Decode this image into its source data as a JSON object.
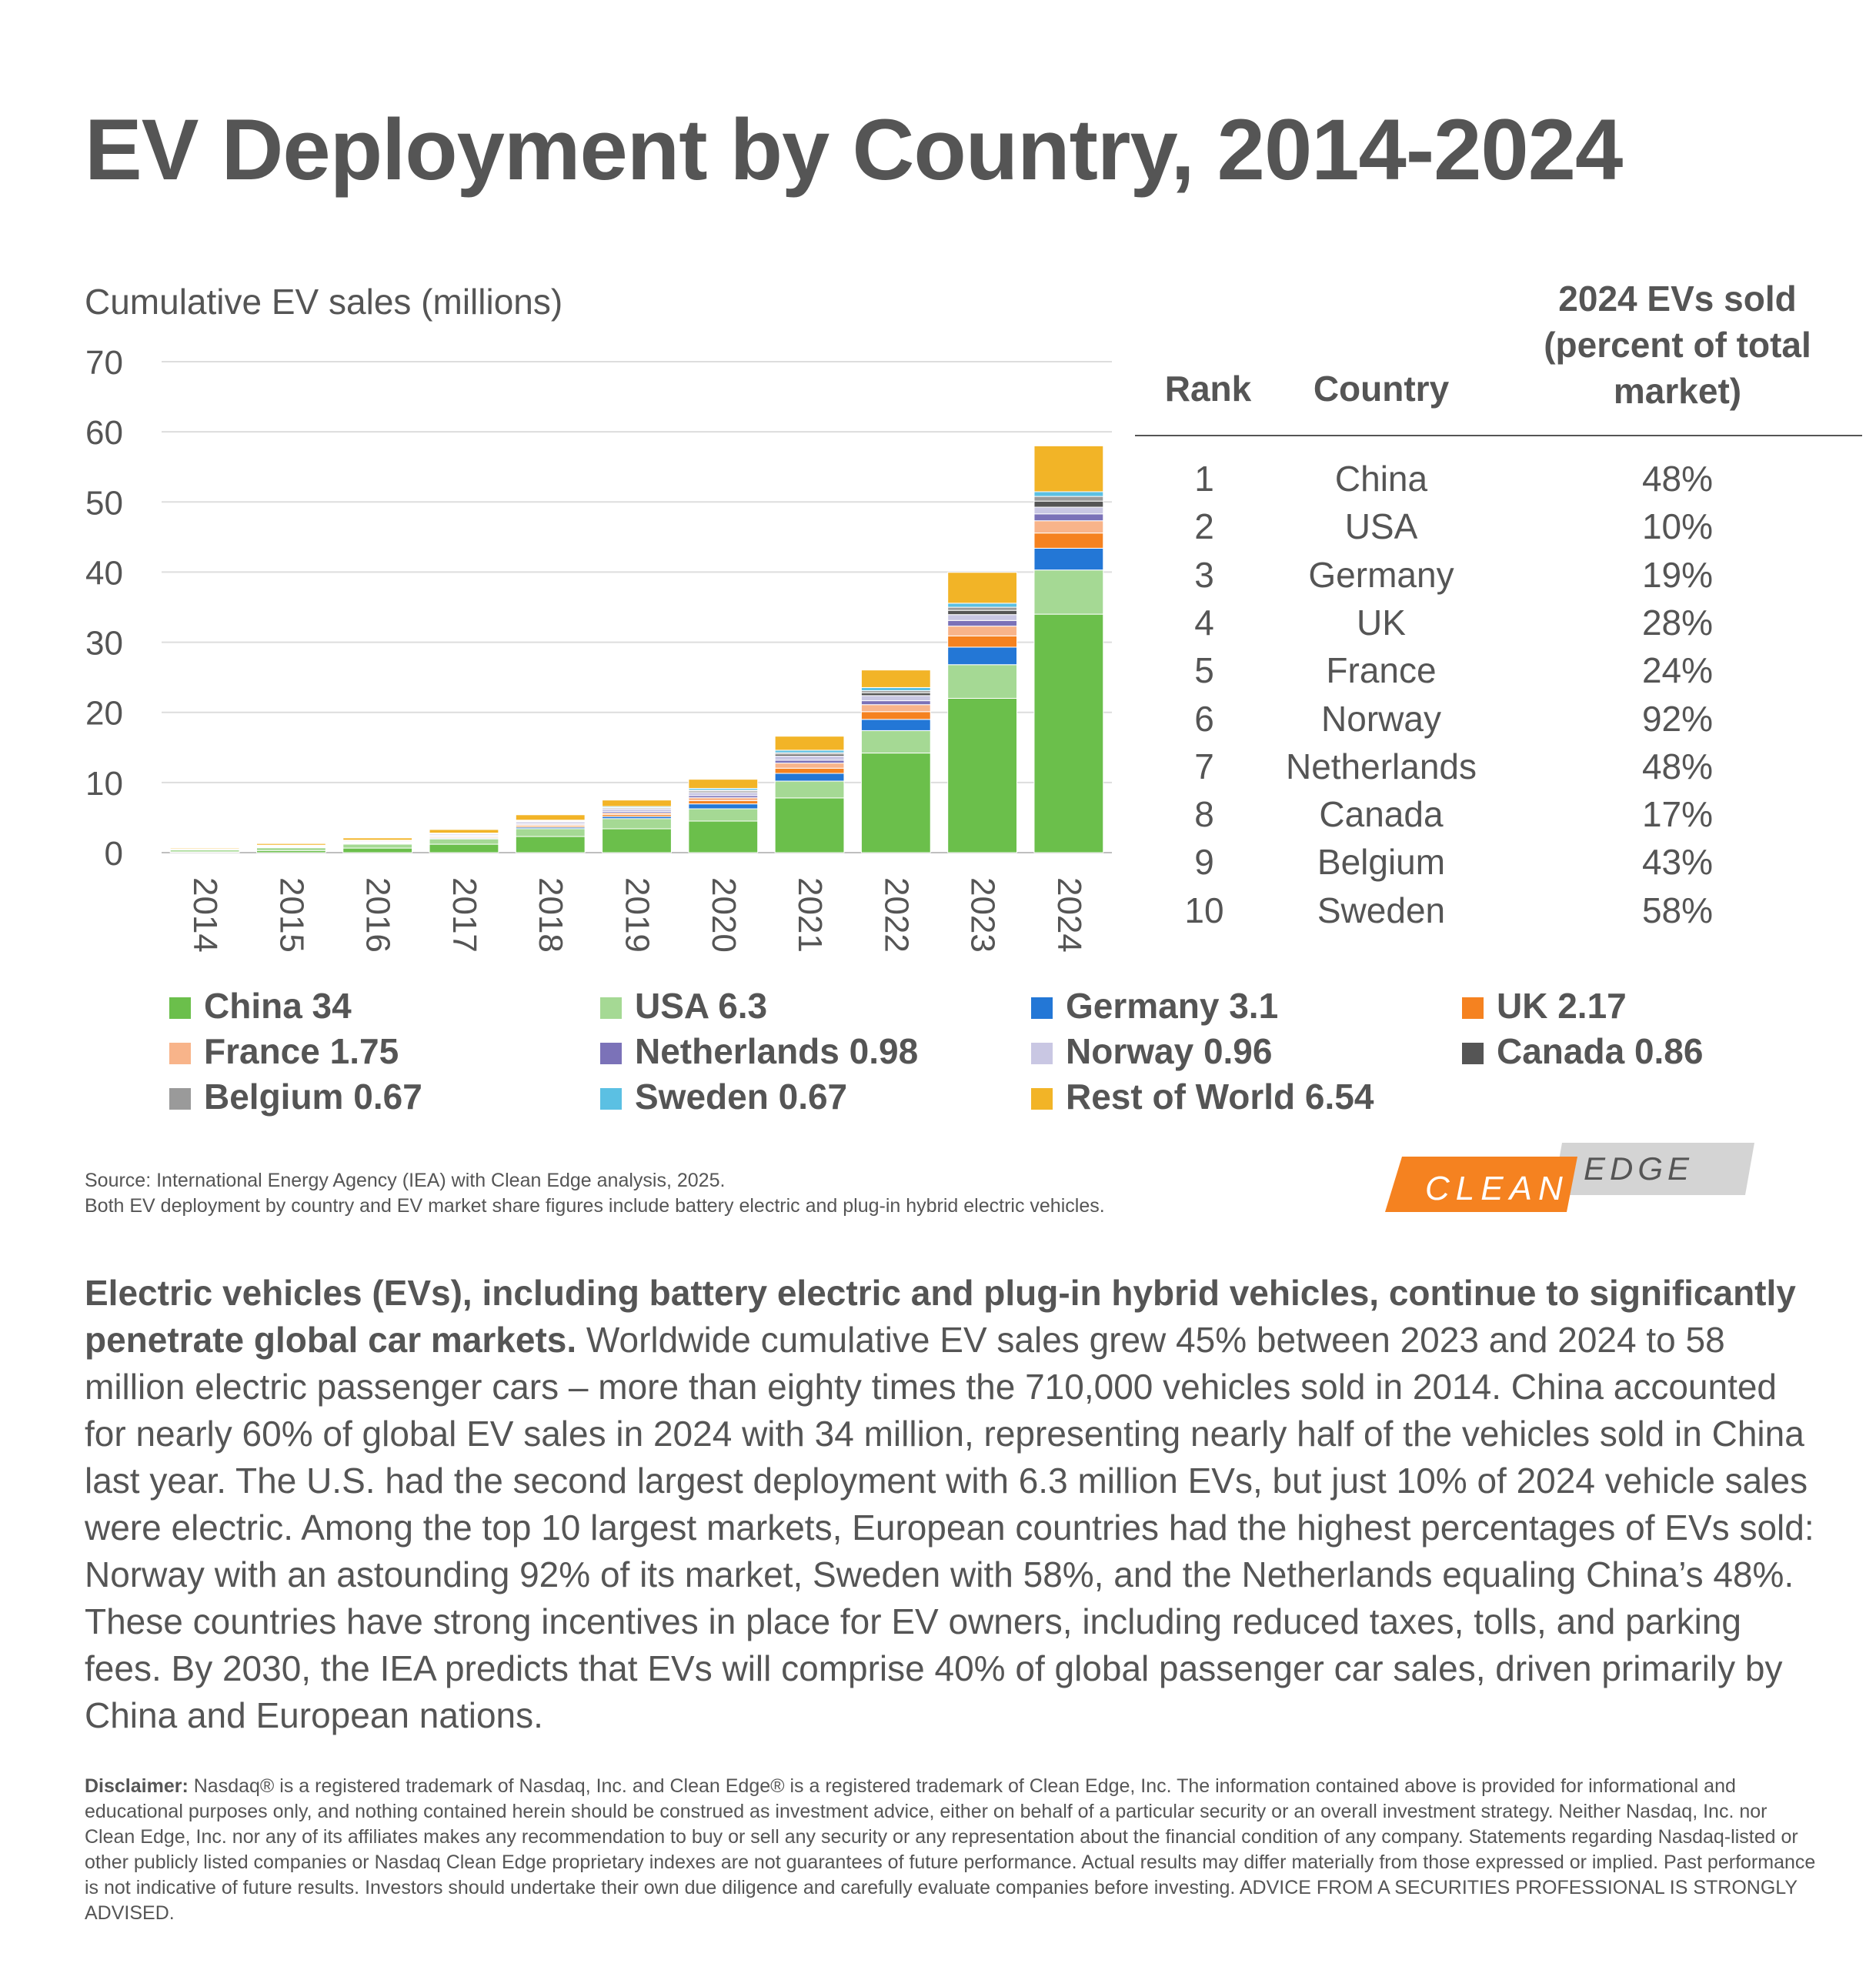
{
  "title": "EV Deployment by Country, 2014-2024",
  "chart_data": {
    "type": "bar",
    "stacked": true,
    "title": "EV Deployment by Country, 2014-2024",
    "ylabel": "Cumulative EV sales (millions)",
    "xlabel": "",
    "ylim": [
      0,
      70
    ],
    "yticks": [
      0,
      10,
      20,
      30,
      40,
      50,
      60,
      70
    ],
    "grid": true,
    "legend_position": "bottom",
    "categories": [
      "2014",
      "2015",
      "2016",
      "2017",
      "2018",
      "2019",
      "2020",
      "2021",
      "2022",
      "2023",
      "2024"
    ],
    "series": [
      {
        "name": "China",
        "legend_label": "China 34",
        "color": "#6BBF4B",
        "values": [
          0.1,
          0.3,
          0.65,
          1.2,
          2.3,
          3.4,
          4.5,
          7.8,
          14.2,
          22.0,
          34.0
        ]
      },
      {
        "name": "USA",
        "legend_label": "USA 6.3",
        "color": "#A5D994",
        "values": [
          0.29,
          0.4,
          0.56,
          0.76,
          1.12,
          1.45,
          1.75,
          2.4,
          3.2,
          4.8,
          6.3
        ]
      },
      {
        "name": "Germany",
        "legend_label": "Germany 3.1",
        "color": "#2377D6",
        "values": [
          0.02,
          0.05,
          0.07,
          0.12,
          0.2,
          0.3,
          0.7,
          1.1,
          1.6,
          2.5,
          3.1
        ]
      },
      {
        "name": "UK",
        "legend_label": "UK 2.17",
        "color": "#F58220",
        "values": [
          0.02,
          0.05,
          0.09,
          0.14,
          0.2,
          0.27,
          0.46,
          0.74,
          1.1,
          1.6,
          2.17
        ]
      },
      {
        "name": "France",
        "legend_label": "France 1.75",
        "color": "#F8B48A",
        "values": [
          0.03,
          0.05,
          0.08,
          0.12,
          0.17,
          0.24,
          0.42,
          0.73,
          1.0,
          1.4,
          1.75
        ]
      },
      {
        "name": "Netherlands",
        "legend_label": "Netherlands 0.98",
        "color": "#7B72B8",
        "values": [
          0.04,
          0.09,
          0.11,
          0.12,
          0.15,
          0.22,
          0.3,
          0.4,
          0.56,
          0.8,
          0.98
        ]
      },
      {
        "name": "Norway",
        "legend_label": "Norway 0.96",
        "color": "#C9C7E3",
        "values": [
          0.04,
          0.08,
          0.13,
          0.18,
          0.26,
          0.34,
          0.45,
          0.6,
          0.73,
          0.84,
          0.96
        ]
      },
      {
        "name": "Canada",
        "legend_label": "Canada 0.86",
        "color": "#555555",
        "values": [
          0.01,
          0.02,
          0.03,
          0.05,
          0.09,
          0.14,
          0.19,
          0.28,
          0.4,
          0.6,
          0.86
        ]
      },
      {
        "name": "Belgium",
        "legend_label": "Belgium 0.67",
        "color": "#9A9A9A",
        "values": [
          0.01,
          0.01,
          0.02,
          0.04,
          0.05,
          0.07,
          0.14,
          0.2,
          0.3,
          0.45,
          0.67
        ]
      },
      {
        "name": "Sweden",
        "legend_label": "Sweden 0.67",
        "color": "#5BC0E3",
        "values": [
          0.01,
          0.02,
          0.04,
          0.06,
          0.09,
          0.15,
          0.25,
          0.35,
          0.45,
          0.57,
          0.67
        ]
      },
      {
        "name": "Rest of World",
        "legend_label": "Rest of World 6.54",
        "color": "#F2B427",
        "values": [
          0.14,
          0.23,
          0.32,
          0.51,
          0.77,
          0.92,
          1.3,
          2.0,
          2.5,
          4.4,
          6.54
        ]
      }
    ]
  },
  "table": {
    "headers": {
      "rank": "Rank",
      "country": "Country",
      "share_lines": [
        "2024 EVs sold",
        "(percent of total",
        "market)"
      ]
    },
    "rows": [
      {
        "rank": "1",
        "country": "China",
        "share": "48%"
      },
      {
        "rank": "2",
        "country": "USA",
        "share": "10%"
      },
      {
        "rank": "3",
        "country": "Germany",
        "share": "19%"
      },
      {
        "rank": "4",
        "country": "UK",
        "share": "28%"
      },
      {
        "rank": "5",
        "country": "France",
        "share": "24%"
      },
      {
        "rank": "6",
        "country": "Norway",
        "share": "92%"
      },
      {
        "rank": "7",
        "country": "Netherlands",
        "share": "48%"
      },
      {
        "rank": "8",
        "country": "Canada",
        "share": "17%"
      },
      {
        "rank": "9",
        "country": "Belgium",
        "share": "43%"
      },
      {
        "rank": "10",
        "country": "Sweden",
        "share": "58%"
      }
    ]
  },
  "source": {
    "line1": "Source: International Energy Agency (IEA) with Clean Edge analysis, 2025.",
    "line2": "Both EV deployment by country and EV market share figures include battery electric and plug-in hybrid electric vehicles."
  },
  "logo": {
    "word1": "CLEAN",
    "word2": "EDGE",
    "color1": "#F58220",
    "color2": "#D4D4D4"
  },
  "body": {
    "lead": "Electric vehicles (EVs), including battery electric and plug-in hybrid vehicles, continue to significantly penetrate global car markets.",
    "text": " Worldwide cumulative EV sales grew 45% between 2023 and 2024 to 58 million electric passenger cars – more than eighty times the 710,000 vehicles sold in 2014. China accounted for nearly 60% of global EV sales in 2024 with 34 million, representing nearly half of the vehicles sold in China last year. The U.S. had the second largest deployment with 6.3 million EVs, but just 10% of 2024 vehicle sales were electric. Among the top 10 largest markets, European countries had the highest percentages of EVs sold: Norway with an astounding 92% of its market, Sweden with 58%, and the Netherlands equaling China’s 48%. These countries have strong incentives in place for EV owners, including reduced taxes, tolls, and parking fees. By 2030, the IEA predicts that EVs will comprise 40% of global passenger car sales, driven primarily by China and European nations."
  },
  "disclaimer": {
    "label": "Disclaimer:",
    "text": " Nasdaq® is a registered trademark of Nasdaq, Inc. and Clean Edge® is a registered trademark of Clean Edge, Inc. The information contained above is provided for informational and educational purposes only, and nothing contained herein should be construed as investment advice, either on behalf of a particular security or an overall investment strategy. Neither Nasdaq, Inc. nor Clean Edge, Inc. nor any of its affiliates makes any recommendation to buy or sell any security or any representation about the financial condition of any company. Statements regarding Nasdaq-listed or other publicly listed companies or Nasdaq Clean Edge proprietary indexes are not guarantees of future performance. Actual results may differ materially from those expressed or implied. Past performance is not indicative of future results. Investors should undertake their own due diligence and carefully evaluate companies before investing.  ADVICE FROM A SECURITIES PROFESSIONAL IS STRONGLY ADVISED."
  }
}
